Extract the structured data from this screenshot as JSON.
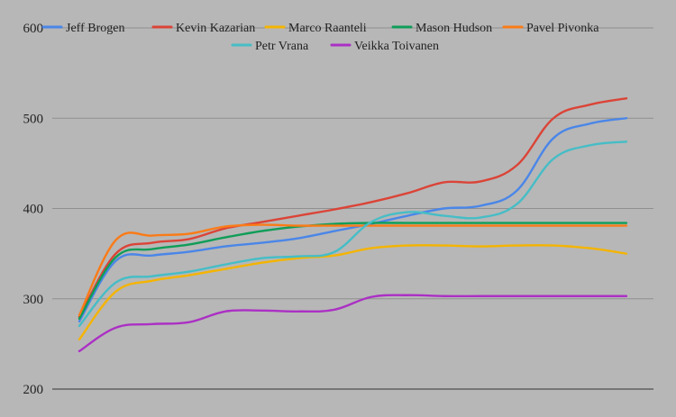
{
  "chart_data": {
    "type": "line",
    "title": "",
    "xlabel": "",
    "ylabel": "",
    "ylim": [
      200,
      600
    ],
    "yticks": [
      200,
      300,
      400,
      500,
      600
    ],
    "x": [
      1,
      2,
      3,
      4,
      5,
      6,
      7,
      8,
      9,
      10,
      11,
      12,
      13,
      14,
      15,
      16
    ],
    "legend_position": "top",
    "grid": true,
    "smooth": true,
    "series": [
      {
        "name": "Jeff Brogen",
        "color": "#4a86e8",
        "values": [
          275,
          342,
          348,
          352,
          358,
          362,
          367,
          375,
          383,
          392,
          400,
          403,
          420,
          478,
          494,
          500
        ]
      },
      {
        "name": "Kevin Kazarian",
        "color": "#db4437",
        "values": [
          280,
          350,
          362,
          366,
          378,
          385,
          392,
          399,
          407,
          417,
          429,
          430,
          448,
          500,
          515,
          522
        ]
      },
      {
        "name": "Marco Raanteli",
        "color": "#f4b400",
        "values": [
          255,
          308,
          320,
          326,
          333,
          340,
          345,
          348,
          356,
          359,
          359,
          358,
          359,
          359,
          356,
          350
        ]
      },
      {
        "name": "Mason Hudson",
        "color": "#0f9d58",
        "values": [
          278,
          346,
          355,
          360,
          368,
          375,
          380,
          383,
          384,
          384,
          384,
          384,
          384,
          384,
          384,
          384
        ]
      },
      {
        "name": "Pavel Pivonka",
        "color": "#fa7b17",
        "values": [
          282,
          365,
          370,
          372,
          380,
          382,
          381,
          381,
          381,
          381,
          381,
          381,
          381,
          381,
          381,
          381
        ]
      },
      {
        "name": "Petr Vrana",
        "color": "#46bdc6",
        "values": [
          270,
          318,
          325,
          330,
          338,
          345,
          347,
          352,
          385,
          396,
          392,
          390,
          405,
          455,
          470,
          474
        ]
      },
      {
        "name": "Veikka Toivanen",
        "color": "#ab30c4",
        "values": [
          242,
          268,
          272,
          274,
          286,
          287,
          286,
          288,
          302,
          304,
          303,
          303,
          303,
          303,
          303,
          303
        ]
      }
    ]
  }
}
